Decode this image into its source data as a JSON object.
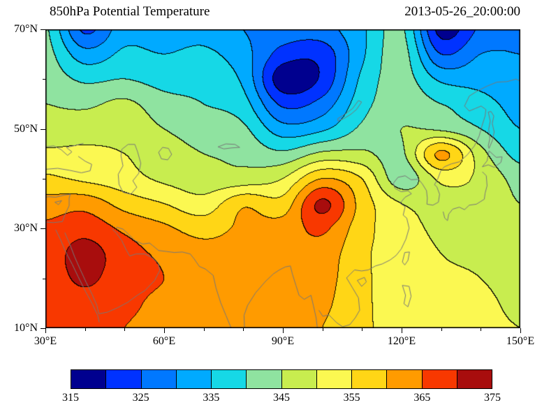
{
  "header": {
    "title": "850hPa Potential Temperature",
    "timestamp": "2013-05-26_20:00:00"
  },
  "chart_data": {
    "type": "heatmap",
    "variant": "filled-contour-map",
    "title": "850hPa Potential Temperature",
    "timestamp": "2013-05-26_20:00:00",
    "lon_range": [
      30,
      150
    ],
    "lat_range": [
      10,
      70
    ],
    "x_ticks": [
      {
        "value": 30,
        "label": "30°E"
      },
      {
        "value": 60,
        "label": "60°E"
      },
      {
        "value": 90,
        "label": "90°E"
      },
      {
        "value": 120,
        "label": "120°E"
      },
      {
        "value": 150,
        "label": "150°E"
      }
    ],
    "x_minor_ticks": [
      40,
      50,
      70,
      80,
      100,
      110,
      130,
      140
    ],
    "y_ticks": [
      {
        "value": 70,
        "label": "70°N"
      },
      {
        "value": 50,
        "label": "50°N"
      },
      {
        "value": 30,
        "label": "30°N"
      },
      {
        "value": 10,
        "label": "10°N"
      }
    ],
    "y_minor_ticks": [
      60,
      40,
      20
    ],
    "levels": {
      "min": 315,
      "max": 375,
      "step": 5
    },
    "colorbar": {
      "min": 315,
      "step": 5,
      "colors": [
        "#00008f",
        "#0032ff",
        "#0078ff",
        "#00aaff",
        "#16d8e6",
        "#8fe3a0",
        "#c8ed4f",
        "#fbf851",
        "#ffd616",
        "#ff9b00",
        "#f83800",
        "#a80d0d"
      ],
      "tick_labels": [
        "315",
        "325",
        "335",
        "345",
        "355",
        "365",
        "375"
      ]
    },
    "grid": {
      "lons": [
        30,
        40,
        50,
        60,
        70,
        80,
        90,
        100,
        110,
        120,
        130,
        140,
        150
      ],
      "lats": [
        70,
        65,
        60,
        55,
        50,
        45,
        40,
        35,
        30,
        25,
        20,
        15,
        10
      ],
      "values": [
        [
          341,
          324,
          333,
          332,
          333,
          330,
          328,
          328,
          334,
          341,
          318,
          326,
          329
        ],
        [
          342,
          332,
          336,
          335,
          336,
          332,
          323,
          322,
          334,
          342,
          325,
          330,
          330
        ],
        [
          343,
          339,
          340,
          338,
          338,
          334,
          317,
          321,
          336,
          342,
          334,
          333,
          331
        ],
        [
          345,
          344,
          346,
          342,
          340,
          337,
          324,
          327,
          338,
          343,
          340,
          337,
          333
        ],
        [
          347,
          348,
          348,
          345,
          343,
          341,
          332,
          334,
          341,
          345,
          344,
          340,
          335
        ],
        [
          351,
          351,
          350,
          347,
          345,
          344,
          341,
          346,
          346,
          344,
          361,
          347,
          338
        ],
        [
          356,
          354,
          352,
          349,
          347,
          347,
          350,
          360,
          355,
          342,
          351,
          349,
          343
        ],
        [
          362,
          363,
          358,
          355,
          352,
          359,
          357,
          371,
          358,
          350,
          349,
          348,
          345
        ],
        [
          366,
          368,
          364,
          361,
          358,
          361,
          362,
          366,
          357,
          352,
          349,
          348,
          346
        ],
        [
          367,
          372,
          367,
          364,
          362,
          362,
          362,
          363,
          356,
          353,
          350,
          349,
          347
        ],
        [
          367,
          371,
          367,
          365,
          363,
          362,
          362,
          362,
          356,
          353,
          351,
          350,
          348
        ],
        [
          366,
          368,
          366,
          364,
          363,
          362,
          361,
          361,
          356,
          353,
          352,
          351,
          349
        ],
        [
          365,
          367,
          365,
          364,
          363,
          362,
          361,
          360,
          356,
          353,
          352,
          351,
          350
        ]
      ]
    },
    "coastlines": [
      [
        [
          32.6,
          29.8
        ],
        [
          33.8,
          27.8
        ],
        [
          35.2,
          25.2
        ],
        [
          36.8,
          22.8
        ],
        [
          38.3,
          20.3
        ],
        [
          40.2,
          17.3
        ],
        [
          41.9,
          14.8
        ],
        [
          43.2,
          12.6
        ],
        [
          43.6,
          11.2
        ]
      ],
      [
        [
          34.9,
          29.2
        ],
        [
          36.2,
          26.8
        ],
        [
          37.4,
          24.3
        ],
        [
          38.8,
          21.8
        ],
        [
          40.3,
          19.2
        ],
        [
          41.8,
          16.8
        ],
        [
          43.0,
          14.6
        ],
        [
          43.5,
          12.9
        ]
      ],
      [
        [
          43.5,
          12.9
        ],
        [
          45.6,
          13.2
        ],
        [
          48.2,
          14.1
        ],
        [
          50.8,
          15.2
        ],
        [
          53.2,
          16.6
        ],
        [
          55.2,
          17.6
        ],
        [
          57.6,
          19.6
        ],
        [
          58.9,
          21.6
        ],
        [
          58.5,
          23.1
        ],
        [
          56.9,
          24.2
        ],
        [
          55.1,
          24.9
        ],
        [
          52.9,
          24.9
        ],
        [
          51.3,
          24.5
        ],
        [
          50.3,
          25.9
        ],
        [
          49.3,
          27.6
        ],
        [
          47.9,
          29.1
        ],
        [
          46.9,
          29.9
        ]
      ],
      [
        [
          47.9,
          30.3
        ],
        [
          49.6,
          29.9
        ],
        [
          51.1,
          28.8
        ],
        [
          52.6,
          27.6
        ],
        [
          54.6,
          26.9
        ],
        [
          56.3,
          27.1
        ],
        [
          57.1,
          26.6
        ],
        [
          58.6,
          25.6
        ],
        [
          60.6,
          25.4
        ],
        [
          62.6,
          25.2
        ],
        [
          64.6,
          25.3
        ],
        [
          66.6,
          24.9
        ],
        [
          67.6,
          23.9
        ]
      ],
      [
        [
          67.6,
          23.9
        ],
        [
          68.9,
          22.4
        ],
        [
          70.4,
          21.9
        ],
        [
          72.4,
          20.6
        ],
        [
          73.1,
          18.1
        ],
        [
          74.3,
          15.1
        ],
        [
          75.6,
          12.6
        ],
        [
          76.9,
          10.1
        ]
      ],
      [
        [
          80.3,
          10.1
        ],
        [
          80.2,
          12.6
        ],
        [
          81.1,
          14.6
        ],
        [
          83.1,
          17.1
        ],
        [
          85.6,
          19.4
        ],
        [
          87.6,
          20.9
        ],
        [
          89.1,
          21.7
        ],
        [
          90.6,
          22.3
        ],
        [
          91.9,
          22.5
        ],
        [
          92.4,
          20.9
        ],
        [
          93.3,
          18.6
        ],
        [
          94.1,
          16.6
        ],
        [
          95.4,
          15.8
        ],
        [
          97.1,
          16.6
        ],
        [
          97.7,
          14.6
        ],
        [
          98.4,
          12.1
        ],
        [
          98.7,
          10.1
        ]
      ],
      [
        [
          99.1,
          13.6
        ],
        [
          100.1,
          12.4
        ],
        [
          101.6,
          12.7
        ],
        [
          103.6,
          11.1
        ],
        [
          105.1,
          10.3
        ],
        [
          106.9,
          10.7
        ],
        [
          108.3,
          12.1
        ],
        [
          109.4,
          13.6
        ],
        [
          109.1,
          16.1
        ],
        [
          107.6,
          18.1
        ],
        [
          106.1,
          20.1
        ],
        [
          107.1,
          20.9
        ],
        [
          108.1,
          21.7
        ],
        [
          109.9,
          21.5
        ],
        [
          111.6,
          21.7
        ],
        [
          113.4,
          22.5
        ],
        [
          115.1,
          22.9
        ],
        [
          117.1,
          23.7
        ],
        [
          118.6,
          24.6
        ],
        [
          119.9,
          25.9
        ],
        [
          121.1,
          27.9
        ],
        [
          121.9,
          30.1
        ],
        [
          121.3,
          32.1
        ],
        [
          120.4,
          32.7
        ],
        [
          120.9,
          34.4
        ],
        [
          119.6,
          35.1
        ],
        [
          120.9,
          36.3
        ],
        [
          122.5,
          37.0
        ],
        [
          121.6,
          37.6
        ],
        [
          119.9,
          37.4
        ],
        [
          118.3,
          38.1
        ],
        [
          117.9,
          39.1
        ],
        [
          119.1,
          40.3
        ],
        [
          120.9,
          40.6
        ],
        [
          122.4,
          39.8
        ],
        [
          124.3,
          39.9
        ]
      ],
      [
        [
          124.3,
          39.9
        ],
        [
          125.3,
          38.9
        ],
        [
          126.3,
          37.6
        ],
        [
          126.5,
          36.1
        ],
        [
          126.4,
          34.9
        ],
        [
          127.9,
          34.7
        ],
        [
          129.3,
          35.3
        ],
        [
          129.6,
          36.9
        ],
        [
          128.9,
          38.4
        ],
        [
          128.3,
          38.8
        ],
        [
          129.1,
          39.9
        ],
        [
          129.9,
          41.6
        ],
        [
          130.8,
          42.4
        ]
      ],
      [
        [
          130.8,
          42.4
        ],
        [
          132.6,
          43.0
        ],
        [
          134.6,
          43.4
        ],
        [
          136.6,
          44.8
        ],
        [
          138.4,
          46.6
        ],
        [
          139.6,
          48.6
        ],
        [
          140.3,
          50.6
        ],
        [
          141.1,
          52.6
        ],
        [
          141.3,
          53.9
        ],
        [
          140.1,
          54.6
        ],
        [
          138.6,
          54.1
        ],
        [
          137.1,
          53.6
        ],
        [
          135.9,
          54.6
        ],
        [
          137.1,
          56.6
        ],
        [
          139.1,
          57.6
        ],
        [
          141.6,
          58.6
        ],
        [
          144.1,
          59.4
        ],
        [
          146.6,
          59.5
        ],
        [
          148.9,
          60.0
        ],
        [
          150.0,
          59.6
        ]
      ],
      [
        [
          142.1,
          46.1
        ],
        [
          142.9,
          47.6
        ],
        [
          143.4,
          49.4
        ],
        [
          142.9,
          51.1
        ],
        [
          143.3,
          52.6
        ],
        [
          142.6,
          53.5
        ],
        [
          141.9,
          53.4
        ],
        [
          142.4,
          51.6
        ],
        [
          142.0,
          49.9
        ],
        [
          142.3,
          48.1
        ],
        [
          141.9,
          46.6
        ],
        [
          142.1,
          46.1
        ]
      ],
      [
        [
          130.5,
          33.4
        ],
        [
          130.9,
          32.1
        ],
        [
          131.6,
          31.6
        ],
        [
          131.9,
          32.9
        ],
        [
          132.9,
          33.9
        ],
        [
          134.6,
          34.3
        ],
        [
          135.9,
          33.8
        ],
        [
          137.1,
          34.7
        ],
        [
          138.9,
          34.9
        ],
        [
          139.9,
          35.4
        ],
        [
          140.9,
          35.9
        ],
        [
          141.1,
          37.1
        ],
        [
          141.6,
          38.6
        ],
        [
          141.4,
          40.6
        ],
        [
          140.4,
          41.4
        ]
      ],
      [
        [
          140.4,
          42.4
        ],
        [
          141.9,
          42.8
        ],
        [
          143.4,
          42.3
        ],
        [
          145.1,
          43.3
        ],
        [
          145.4,
          44.4
        ],
        [
          143.9,
          44.3
        ],
        [
          142.1,
          45.6
        ],
        [
          141.6,
          43.6
        ],
        [
          140.4,
          42.4
        ]
      ],
      [
        [
          120.8,
          25.2
        ],
        [
          122.0,
          25.3
        ],
        [
          121.6,
          23.6
        ],
        [
          120.8,
          22.7
        ],
        [
          120.2,
          23.3
        ],
        [
          120.8,
          25.2
        ]
      ],
      [
        [
          108.8,
          19.6
        ],
        [
          110.6,
          20.2
        ],
        [
          111.1,
          19.3
        ],
        [
          109.9,
          18.4
        ],
        [
          108.8,
          19.6
        ]
      ],
      [
        [
          49.3,
          45.9
        ],
        [
          50.9,
          46.9
        ],
        [
          52.6,
          46.9
        ],
        [
          53.3,
          45.4
        ],
        [
          54.1,
          43.1
        ],
        [
          53.6,
          41.1
        ],
        [
          52.1,
          39.6
        ],
        [
          53.1,
          38.3
        ],
        [
          51.6,
          36.9
        ],
        [
          49.6,
          37.3
        ],
        [
          48.6,
          38.9
        ],
        [
          48.4,
          40.9
        ],
        [
          49.6,
          42.6
        ],
        [
          49.1,
          44.6
        ],
        [
          49.3,
          45.9
        ]
      ],
      [
        [
          58.6,
          45.3
        ],
        [
          59.6,
          46.3
        ],
        [
          61.1,
          46.1
        ],
        [
          61.9,
          44.9
        ],
        [
          60.9,
          43.8
        ],
        [
          59.3,
          44.0
        ],
        [
          58.6,
          45.3
        ]
      ],
      [
        [
          73.6,
          46.4
        ],
        [
          75.6,
          47.0
        ],
        [
          77.9,
          46.9
        ],
        [
          79.1,
          46.3
        ],
        [
          77.1,
          46.2
        ],
        [
          75.1,
          46.0
        ],
        [
          73.6,
          46.4
        ]
      ],
      [
        [
          30.0,
          46.4
        ],
        [
          32.1,
          46.6
        ],
        [
          33.9,
          45.9
        ],
        [
          35.6,
          44.7
        ],
        [
          36.7,
          45.4
        ],
        [
          35.3,
          46.3
        ],
        [
          37.6,
          46.7
        ],
        [
          39.6,
          47.1
        ]
      ],
      [
        [
          30.0,
          41.9
        ],
        [
          33.1,
          42.1
        ],
        [
          36.1,
          41.7
        ],
        [
          39.1,
          41.2
        ],
        [
          41.3,
          41.6
        ],
        [
          41.7,
          42.9
        ],
        [
          40.1,
          43.5
        ],
        [
          38.3,
          44.5
        ]
      ],
      [
        [
          30.0,
          31.3
        ],
        [
          32.1,
          31.2
        ],
        [
          34.3,
          31.4
        ],
        [
          35.0,
          32.9
        ],
        [
          36.0,
          34.6
        ],
        [
          36.0,
          36.1
        ],
        [
          36.3,
          36.9
        ],
        [
          34.6,
          36.7
        ],
        [
          32.6,
          36.3
        ],
        [
          30.9,
          36.4
        ],
        [
          30.0,
          36.3
        ]
      ],
      [
        [
          32.4,
          35.3
        ],
        [
          34.1,
          35.6
        ],
        [
          33.3,
          34.8
        ],
        [
          32.4,
          35.3
        ]
      ],
      [
        [
          103.9,
          51.6
        ],
        [
          105.4,
          52.1
        ],
        [
          107.1,
          52.9
        ],
        [
          108.6,
          53.9
        ],
        [
          109.9,
          55.4
        ],
        [
          109.1,
          55.7
        ],
        [
          107.6,
          54.1
        ],
        [
          105.6,
          52.9
        ],
        [
          103.9,
          52.1
        ],
        [
          103.9,
          51.6
        ]
      ],
      [
        [
          120.2,
          18.6
        ],
        [
          121.9,
          18.4
        ],
        [
          122.4,
          16.4
        ],
        [
          121.6,
          14.3
        ],
        [
          120.6,
          14.9
        ],
        [
          121.0,
          16.6
        ],
        [
          120.2,
          18.6
        ]
      ]
    ]
  }
}
